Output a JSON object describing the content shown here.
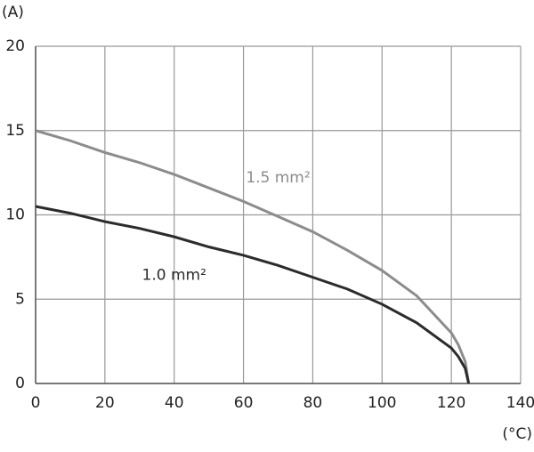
{
  "chart_data": {
    "type": "line",
    "x_label": "(°C)",
    "y_label": "(A)",
    "x": [
      0,
      10,
      20,
      30,
      40,
      50,
      60,
      70,
      80,
      90,
      100,
      110,
      120,
      122,
      124,
      125
    ],
    "series": [
      {
        "name": "1.5 mm²",
        "color": "#8c8c8c",
        "values": [
          15,
          14.4,
          13.7,
          13.1,
          12.4,
          11.6,
          10.8,
          9.9,
          9.0,
          7.9,
          6.7,
          5.2,
          3.0,
          2.3,
          1.3,
          0
        ]
      },
      {
        "name": "1.0 mm²",
        "color": "#2b2b2b",
        "values": [
          10.5,
          10.1,
          9.6,
          9.2,
          8.7,
          8.1,
          7.6,
          7.0,
          6.3,
          5.6,
          4.7,
          3.6,
          2.1,
          1.6,
          0.9,
          0
        ]
      }
    ],
    "xlim": [
      0,
      140
    ],
    "xticks": [
      0,
      20,
      40,
      60,
      80,
      100,
      120,
      140
    ],
    "ylim": [
      0,
      20
    ],
    "yticks": [
      0,
      5,
      10,
      15,
      20
    ],
    "grid": true
  }
}
